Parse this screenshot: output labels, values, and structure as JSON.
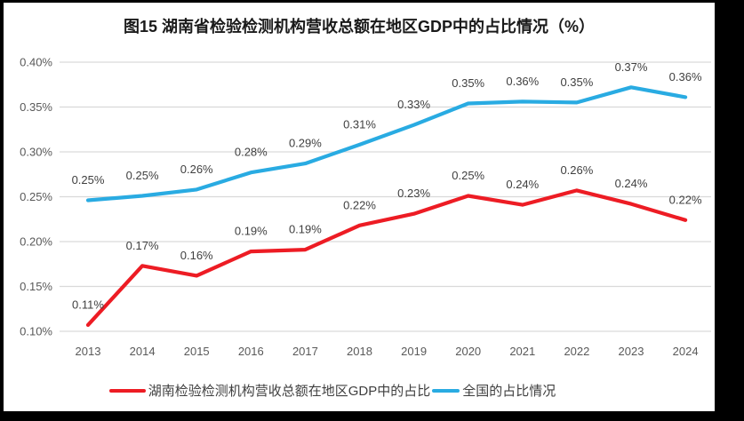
{
  "title": "图15 湖南省检验检测机构营收总额在地区GDP中的占比情况（%）",
  "chart_data": {
    "type": "line",
    "title": "图15 湖南省检验检测机构营收总额在地区GDP中的占比情况（%）",
    "categories": [
      "2013",
      "2014",
      "2015",
      "2016",
      "2017",
      "2018",
      "2019",
      "2020",
      "2021",
      "2022",
      "2023",
      "2024"
    ],
    "series": [
      {
        "name": "湖南检验检测机构营收总额在地区GDP中的占比",
        "color": "#ED1C24",
        "values": [
          0.107,
          0.173,
          0.162,
          0.189,
          0.191,
          0.218,
          0.231,
          0.251,
          0.241,
          0.257,
          0.242,
          0.224
        ],
        "labels": [
          "0.11%",
          "0.17%",
          "0.16%",
          "0.19%",
          "0.19%",
          "0.22%",
          "0.23%",
          "0.25%",
          "0.24%",
          "0.26%",
          "0.24%",
          "0.22%"
        ]
      },
      {
        "name": "全国的占比情况",
        "color": "#29ABE2",
        "values": [
          0.246,
          0.251,
          0.258,
          0.277,
          0.287,
          0.308,
          0.33,
          0.354,
          0.356,
          0.355,
          0.372,
          0.361
        ],
        "labels": [
          "0.25%",
          "0.25%",
          "0.26%",
          "0.28%",
          "0.29%",
          "0.31%",
          "0.33%",
          "0.35%",
          "0.36%",
          "0.35%",
          "0.37%",
          "0.36%"
        ]
      }
    ],
    "y_ticks": [
      {
        "value": 0.4,
        "label": "0.40%"
      },
      {
        "value": 0.35,
        "label": "0.35%"
      },
      {
        "value": 0.3,
        "label": "0.30%"
      },
      {
        "value": 0.25,
        "label": "0.25%"
      },
      {
        "value": 0.2,
        "label": "0.20%"
      },
      {
        "value": 0.15,
        "label": "0.15%"
      },
      {
        "value": 0.1,
        "label": "0.10%"
      }
    ],
    "ylim": [
      0.1,
      0.4
    ],
    "xlabel": "",
    "ylabel": "",
    "grid": true,
    "legend_position": "bottom",
    "colors": {
      "grid": "#D9D9D9",
      "axis_text": "#595959",
      "data_label": "#3F3F3F",
      "background": "#FFFFFF",
      "frame": "#000000"
    }
  }
}
